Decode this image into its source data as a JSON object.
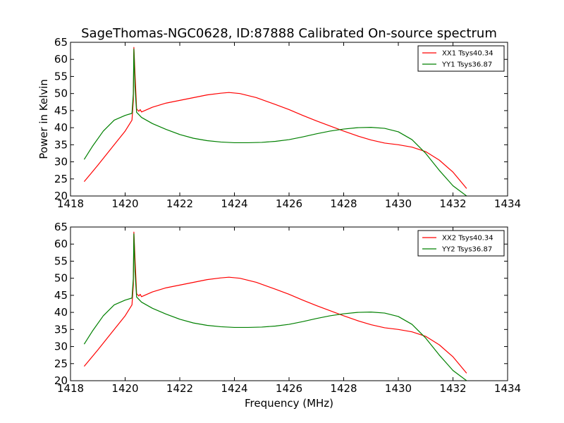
{
  "figure": {
    "title": "SageThomas-NGC0628, ID:87888 Calibrated On-source spectrum",
    "ylabel": "Power in Kelvin",
    "xlabel": "Frequency (MHz)"
  },
  "chart_data": [
    {
      "type": "line",
      "panel": "top",
      "xlim": [
        1418,
        1434
      ],
      "ylim": [
        20,
        65
      ],
      "x_ticks": [
        1418,
        1420,
        1422,
        1424,
        1426,
        1428,
        1430,
        1432,
        1434
      ],
      "y_ticks": [
        20,
        25,
        30,
        35,
        40,
        45,
        50,
        55,
        60,
        65
      ],
      "grid": false,
      "legend_position": "top-right",
      "series": [
        {
          "name": "XX1 Tsys40.34",
          "color": "#ff0000",
          "points": [
            [
              1418.5,
              24.2
            ],
            [
              1419.0,
              29.0
            ],
            [
              1419.5,
              34.0
            ],
            [
              1420.0,
              39.0
            ],
            [
              1420.25,
              42.2
            ],
            [
              1420.3,
              48.0
            ],
            [
              1420.32,
              63.5
            ],
            [
              1420.36,
              56.0
            ],
            [
              1420.42,
              45.5
            ],
            [
              1420.5,
              44.8
            ],
            [
              1420.55,
              45.3
            ],
            [
              1420.6,
              44.6
            ],
            [
              1421.0,
              46.0
            ],
            [
              1421.5,
              47.2
            ],
            [
              1422.0,
              48.0
            ],
            [
              1422.5,
              48.8
            ],
            [
              1423.0,
              49.6
            ],
            [
              1423.5,
              50.1
            ],
            [
              1423.8,
              50.3
            ],
            [
              1424.2,
              50.0
            ],
            [
              1424.8,
              48.8
            ],
            [
              1425.5,
              46.8
            ],
            [
              1426.0,
              45.3
            ],
            [
              1426.5,
              43.6
            ],
            [
              1427.0,
              42.0
            ],
            [
              1427.5,
              40.5
            ],
            [
              1428.0,
              39.0
            ],
            [
              1428.5,
              37.6
            ],
            [
              1429.0,
              36.4
            ],
            [
              1429.5,
              35.5
            ],
            [
              1430.0,
              35.0
            ],
            [
              1430.5,
              34.3
            ],
            [
              1431.0,
              33.0
            ],
            [
              1431.5,
              30.5
            ],
            [
              1432.0,
              27.0
            ],
            [
              1432.5,
              22.2
            ]
          ]
        },
        {
          "name": "YY1 Tsys36.87",
          "color": "#008000",
          "points": [
            [
              1418.5,
              30.7
            ],
            [
              1418.8,
              34.5
            ],
            [
              1419.2,
              39.0
            ],
            [
              1419.6,
              42.2
            ],
            [
              1420.0,
              43.6
            ],
            [
              1420.25,
              44.2
            ],
            [
              1420.3,
              50.0
            ],
            [
              1420.32,
              63.0
            ],
            [
              1420.36,
              52.0
            ],
            [
              1420.42,
              44.5
            ],
            [
              1420.6,
              43.0
            ],
            [
              1421.0,
              41.2
            ],
            [
              1421.5,
              39.5
            ],
            [
              1422.0,
              38.0
            ],
            [
              1422.5,
              36.9
            ],
            [
              1423.0,
              36.2
            ],
            [
              1423.5,
              35.8
            ],
            [
              1424.0,
              35.6
            ],
            [
              1424.5,
              35.6
            ],
            [
              1425.0,
              35.7
            ],
            [
              1425.5,
              36.0
            ],
            [
              1426.0,
              36.5
            ],
            [
              1426.5,
              37.3
            ],
            [
              1427.0,
              38.2
            ],
            [
              1427.5,
              39.0
            ],
            [
              1428.0,
              39.6
            ],
            [
              1428.5,
              40.0
            ],
            [
              1429.0,
              40.1
            ],
            [
              1429.5,
              39.8
            ],
            [
              1430.0,
              38.8
            ],
            [
              1430.5,
              36.5
            ],
            [
              1431.0,
              32.5
            ],
            [
              1431.5,
              27.5
            ],
            [
              1432.0,
              23.0
            ],
            [
              1432.5,
              20.0
            ]
          ]
        }
      ]
    },
    {
      "type": "line",
      "panel": "bottom",
      "xlim": [
        1418,
        1434
      ],
      "ylim": [
        20,
        65
      ],
      "x_ticks": [
        1418,
        1420,
        1422,
        1424,
        1426,
        1428,
        1430,
        1432,
        1434
      ],
      "y_ticks": [
        20,
        25,
        30,
        35,
        40,
        45,
        50,
        55,
        60,
        65
      ],
      "grid": false,
      "legend_position": "top-right",
      "series": [
        {
          "name": "XX2 Tsys40.34",
          "color": "#ff0000",
          "points": [
            [
              1418.5,
              24.2
            ],
            [
              1419.0,
              29.0
            ],
            [
              1419.5,
              34.0
            ],
            [
              1420.0,
              39.0
            ],
            [
              1420.25,
              42.2
            ],
            [
              1420.3,
              48.0
            ],
            [
              1420.32,
              63.5
            ],
            [
              1420.36,
              56.0
            ],
            [
              1420.42,
              45.5
            ],
            [
              1420.5,
              44.8
            ],
            [
              1420.55,
              45.3
            ],
            [
              1420.6,
              44.6
            ],
            [
              1421.0,
              46.0
            ],
            [
              1421.5,
              47.2
            ],
            [
              1422.0,
              48.0
            ],
            [
              1422.5,
              48.8
            ],
            [
              1423.0,
              49.6
            ],
            [
              1423.5,
              50.1
            ],
            [
              1423.8,
              50.3
            ],
            [
              1424.2,
              50.0
            ],
            [
              1424.8,
              48.8
            ],
            [
              1425.5,
              46.8
            ],
            [
              1426.0,
              45.3
            ],
            [
              1426.5,
              43.6
            ],
            [
              1427.0,
              42.0
            ],
            [
              1427.5,
              40.5
            ],
            [
              1428.0,
              39.0
            ],
            [
              1428.5,
              37.6
            ],
            [
              1429.0,
              36.4
            ],
            [
              1429.5,
              35.5
            ],
            [
              1430.0,
              35.0
            ],
            [
              1430.5,
              34.3
            ],
            [
              1431.0,
              33.0
            ],
            [
              1431.5,
              30.5
            ],
            [
              1432.0,
              27.0
            ],
            [
              1432.5,
              22.2
            ]
          ]
        },
        {
          "name": "YY2 Tsys36.87",
          "color": "#008000",
          "points": [
            [
              1418.5,
              30.7
            ],
            [
              1418.8,
              34.5
            ],
            [
              1419.2,
              39.0
            ],
            [
              1419.6,
              42.2
            ],
            [
              1420.0,
              43.6
            ],
            [
              1420.25,
              44.2
            ],
            [
              1420.3,
              50.0
            ],
            [
              1420.32,
              63.0
            ],
            [
              1420.36,
              52.0
            ],
            [
              1420.42,
              44.5
            ],
            [
              1420.6,
              43.0
            ],
            [
              1421.0,
              41.2
            ],
            [
              1421.5,
              39.5
            ],
            [
              1422.0,
              38.0
            ],
            [
              1422.5,
              36.9
            ],
            [
              1423.0,
              36.2
            ],
            [
              1423.5,
              35.8
            ],
            [
              1424.0,
              35.6
            ],
            [
              1424.5,
              35.6
            ],
            [
              1425.0,
              35.7
            ],
            [
              1425.5,
              36.0
            ],
            [
              1426.0,
              36.5
            ],
            [
              1426.5,
              37.3
            ],
            [
              1427.0,
              38.2
            ],
            [
              1427.5,
              39.0
            ],
            [
              1428.0,
              39.6
            ],
            [
              1428.5,
              40.0
            ],
            [
              1429.0,
              40.1
            ],
            [
              1429.5,
              39.8
            ],
            [
              1430.0,
              38.8
            ],
            [
              1430.5,
              36.5
            ],
            [
              1431.0,
              32.5
            ],
            [
              1431.5,
              27.5
            ],
            [
              1432.0,
              23.0
            ],
            [
              1432.5,
              20.0
            ]
          ]
        }
      ]
    }
  ]
}
